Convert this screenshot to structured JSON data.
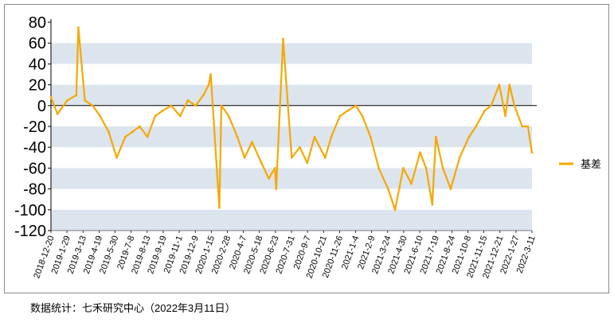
{
  "source_note": "数据统计：七禾研究中心（2022年3月11日）",
  "chart_data": {
    "type": "line",
    "title": "",
    "xlabel": "",
    "ylabel": "",
    "ylim": [
      -120,
      80
    ],
    "y_ticks": [
      80,
      60,
      40,
      20,
      0,
      -20,
      -40,
      -60,
      -80,
      -100,
      -120
    ],
    "grid": "alternating horizontal bands",
    "legend_position": "right",
    "x_tick_labels": [
      "2018-12-20",
      "2019-1-29",
      "2019-3-13",
      "2019-4-19",
      "2019-5-30",
      "2019-7-8",
      "2019-8-13",
      "2019-9-19",
      "2019-11-1",
      "2019-12-9",
      "2020-1-15",
      "2020-2-28",
      "2020-4-7",
      "2020-5-18",
      "2020-6-23",
      "2020-7-31",
      "2020-9-7",
      "2020-10-21",
      "2020-11-26",
      "2021-1-4",
      "2021-2-9",
      "2021-3-24",
      "2021-4-30",
      "2021-6-10",
      "2021-7-19",
      "2021-8-24",
      "2021-10-8",
      "2021-11-15",
      "2021-12-21",
      "2022-1-27",
      "2022-3-11"
    ],
    "series": [
      {
        "name": "基差",
        "color": "#F5A800",
        "x": [
          "2018-12-20",
          "2019-1-5",
          "2019-1-29",
          "2019-2-20",
          "2019-2-25",
          "2019-3-13",
          "2019-4-1",
          "2019-4-19",
          "2019-5-10",
          "2019-5-30",
          "2019-6-20",
          "2019-7-8",
          "2019-7-25",
          "2019-8-13",
          "2019-9-1",
          "2019-9-19",
          "2019-10-10",
          "2019-11-1",
          "2019-11-20",
          "2019-12-9",
          "2019-12-28",
          "2020-1-10",
          "2020-1-15",
          "2020-2-5",
          "2020-2-10",
          "2020-2-28",
          "2020-3-20",
          "2020-4-7",
          "2020-4-25",
          "2020-5-18",
          "2020-6-5",
          "2020-6-20",
          "2020-6-23",
          "2020-7-10",
          "2020-7-31",
          "2020-8-20",
          "2020-9-7",
          "2020-9-25",
          "2020-10-21",
          "2020-11-5",
          "2020-11-26",
          "2020-12-15",
          "2021-1-4",
          "2021-1-20",
          "2021-2-9",
          "2021-3-1",
          "2021-3-24",
          "2021-4-10",
          "2021-4-30",
          "2021-5-20",
          "2021-6-10",
          "2021-6-25",
          "2021-7-10",
          "2021-7-19",
          "2021-8-5",
          "2021-8-24",
          "2021-9-15",
          "2021-10-8",
          "2021-10-25",
          "2021-11-15",
          "2021-12-1",
          "2021-12-21",
          "2022-1-5",
          "2022-1-15",
          "2022-1-27",
          "2022-2-15",
          "2022-3-1",
          "2022-3-11"
        ],
        "values": [
          8,
          -8,
          5,
          10,
          75,
          5,
          0,
          -10,
          -25,
          -50,
          -30,
          -25,
          -20,
          -30,
          -10,
          -5,
          0,
          -10,
          5,
          0,
          10,
          20,
          30,
          -98,
          0,
          -10,
          -30,
          -50,
          -35,
          -55,
          -70,
          -60,
          -80,
          64,
          -50,
          -40,
          -55,
          -30,
          -50,
          -30,
          -10,
          -5,
          0,
          -10,
          -30,
          -60,
          -80,
          -100,
          -60,
          -75,
          -45,
          -60,
          -95,
          -30,
          -60,
          -80,
          -50,
          -30,
          -20,
          -5,
          0,
          20,
          -10,
          20,
          0,
          -20,
          -20,
          -45
        ]
      }
    ]
  }
}
